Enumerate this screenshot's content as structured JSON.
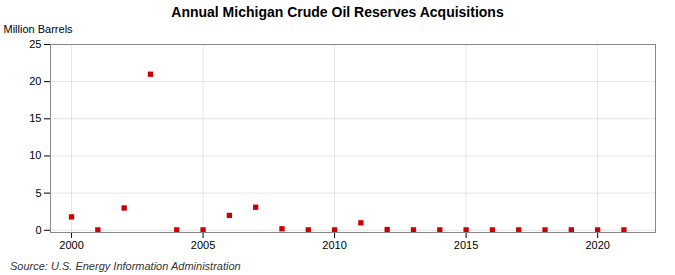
{
  "chart_data": {
    "type": "scatter",
    "title": "Annual Michigan Crude Oil Reserves Acquisitions",
    "ylabel": "Million Barrels",
    "annotations": [
      "Source: U.S. Energy Information Administration"
    ],
    "x": [
      2000,
      2001,
      2002,
      2003,
      2004,
      2005,
      2006,
      2007,
      2008,
      2009,
      2010,
      2011,
      2012,
      2013,
      2014,
      2015,
      2016,
      2017,
      2018,
      2019,
      2020,
      2021
    ],
    "values": [
      1.8,
      0.05,
      3.0,
      21.0,
      0.05,
      0.05,
      2.0,
      3.1,
      0.2,
      0.05,
      0.05,
      1.0,
      0.1,
      0.05,
      0.05,
      0.05,
      0.05,
      0.05,
      0.05,
      0.05,
      0.05,
      0.05
    ],
    "color": "#cc0000",
    "marker": "square",
    "xlim": [
      1999.2,
      2022.2
    ],
    "ylim": [
      -0.3,
      25
    ],
    "xticks": [
      2000,
      2005,
      2010,
      2015,
      2020
    ],
    "yticks": [
      0,
      5,
      10,
      15,
      20,
      25
    ],
    "grid": true
  }
}
